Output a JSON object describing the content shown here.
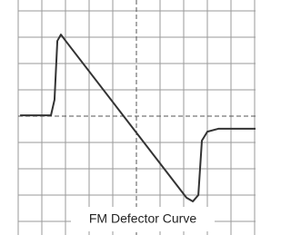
{
  "chart_data": {
    "type": "line",
    "title": "FM Defector Curve",
    "x": [
      0.08,
      1.38,
      1.53,
      1.65,
      1.8,
      2.0,
      7.09,
      7.36,
      7.59,
      7.74,
      7.97,
      8.43,
      10
    ],
    "series": [
      {
        "color": "#333333",
        "values": [
          4.03,
          4.03,
          4.62,
          6.86,
          7.1,
          6.86,
          0.9,
          0.76,
          1.0,
          3.07,
          3.41,
          3.52,
          3.52
        ]
      }
    ],
    "xlim": [
      0,
      10
    ],
    "ylim": [
      0,
      8
    ]
  }
}
